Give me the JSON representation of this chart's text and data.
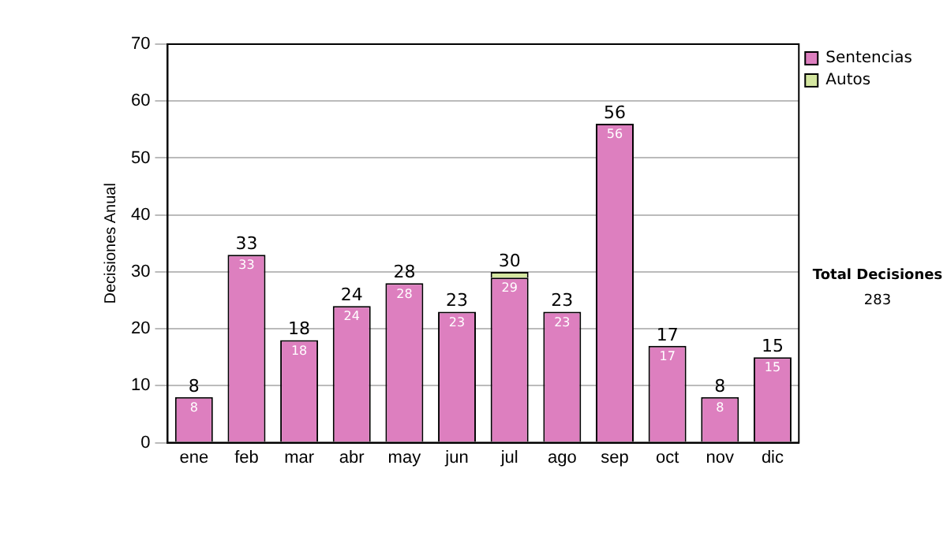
{
  "chart_data": {
    "type": "bar",
    "stacked": true,
    "ylabel": "Decisiones Anual",
    "categories": [
      "ene",
      "feb",
      "mar",
      "abr",
      "may",
      "jun",
      "jul",
      "ago",
      "sep",
      "oct",
      "nov",
      "dic"
    ],
    "series": [
      {
        "name": "Sentencias",
        "color": "#dd7fbf",
        "values": [
          8,
          33,
          18,
          24,
          28,
          23,
          29,
          23,
          56,
          17,
          8,
          15
        ],
        "value_labels": [
          "8",
          "33",
          "18",
          "24",
          "28",
          "23",
          "29",
          "23",
          "56",
          "17",
          "8",
          "15"
        ]
      },
      {
        "name": "Autos",
        "color": "#d4e6a0",
        "values": [
          0,
          0,
          0,
          0,
          0,
          0,
          1,
          0,
          0,
          0,
          0,
          0
        ]
      }
    ],
    "totals": [
      "8",
      "33",
      "18",
      "24",
      "28",
      "23",
      "30",
      "23",
      "56",
      "17",
      "8",
      "15"
    ],
    "ylim": [
      0,
      70
    ],
    "yticks": [
      0,
      10,
      20,
      30,
      40,
      50,
      60,
      70
    ],
    "grid": "y",
    "legend": "right",
    "annotations": [
      "Total Decisiones",
      "283"
    ]
  }
}
